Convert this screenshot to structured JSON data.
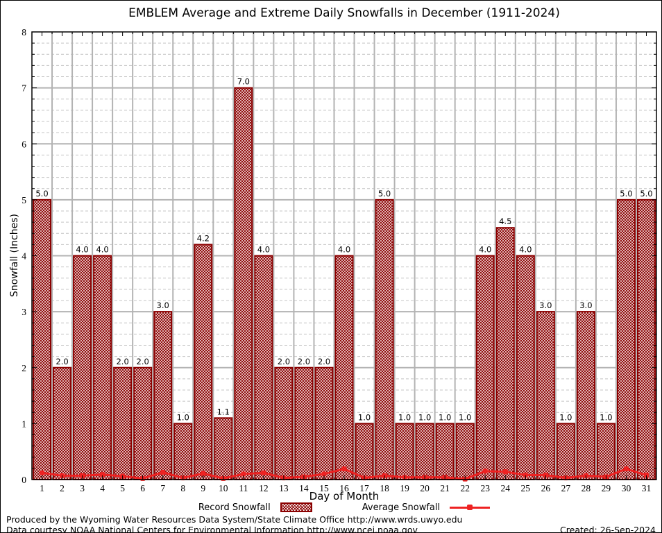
{
  "title": "EMBLEM Average and Extreme Daily Snowfalls in December (1911-2024)",
  "legend": {
    "record_label": "Record Snowfall",
    "average_label": "Average Snowfall"
  },
  "footer": {
    "line1": "Produced by the Wyoming Water Resources Data System/State Climate Office http://www.wrds.uwyo.edu",
    "line2": "Data courtesy NOAA National Centers for Environmental Information http://www.ncei.noaa.gov",
    "created": "Created: 26-Sep-2024"
  },
  "colors": {
    "bar_border": "#8b0000",
    "bar_hatch": "#8b0000",
    "average_line": "#ee2222",
    "major_grid": "#b3b3b3",
    "minor_grid": "#c4c4c4",
    "frame": "#000000"
  },
  "chart_data": {
    "type": "bar",
    "title": "EMBLEM Average and Extreme Daily Snowfalls in December (1911-2024)",
    "xlabel": "Day of Month",
    "ylabel": "Snowfall (Inches)",
    "x": [
      1,
      2,
      3,
      4,
      5,
      6,
      7,
      8,
      9,
      10,
      11,
      12,
      13,
      14,
      15,
      16,
      17,
      18,
      19,
      20,
      21,
      22,
      23,
      24,
      25,
      26,
      27,
      28,
      29,
      30,
      31
    ],
    "ylim": [
      0,
      8
    ],
    "yticks": [
      0,
      1,
      2,
      3,
      4,
      5,
      6,
      7,
      8
    ],
    "minor_y_step": 0.2,
    "grid": "major solid gray, minor dashed, vertical lines between day columns",
    "legend_position": "bottom-center",
    "bar_value_labels_shown": true,
    "series": [
      {
        "name": "Record Snowfall",
        "type": "bar",
        "style": "white fill with dark-red crosshatch, dark-red border",
        "values": [
          5.0,
          2.0,
          4.0,
          4.0,
          2.0,
          2.0,
          3.0,
          1.0,
          4.2,
          1.1,
          7.0,
          4.0,
          2.0,
          2.0,
          2.0,
          4.0,
          1.0,
          5.0,
          1.0,
          1.0,
          1.0,
          1.0,
          4.0,
          4.5,
          4.0,
          3.0,
          1.0,
          3.0,
          1.0,
          5.0,
          5.0
        ]
      },
      {
        "name": "Average Snowfall",
        "type": "line",
        "style": "red line with filled square markers",
        "values": [
          0.12,
          0.07,
          0.07,
          0.09,
          0.06,
          0.02,
          0.13,
          0.03,
          0.11,
          0.02,
          0.1,
          0.12,
          0.03,
          0.05,
          0.1,
          0.19,
          0.03,
          0.07,
          0.04,
          0.04,
          0.04,
          0.01,
          0.15,
          0.14,
          0.08,
          0.08,
          0.03,
          0.07,
          0.05,
          0.19,
          0.08
        ]
      }
    ]
  }
}
